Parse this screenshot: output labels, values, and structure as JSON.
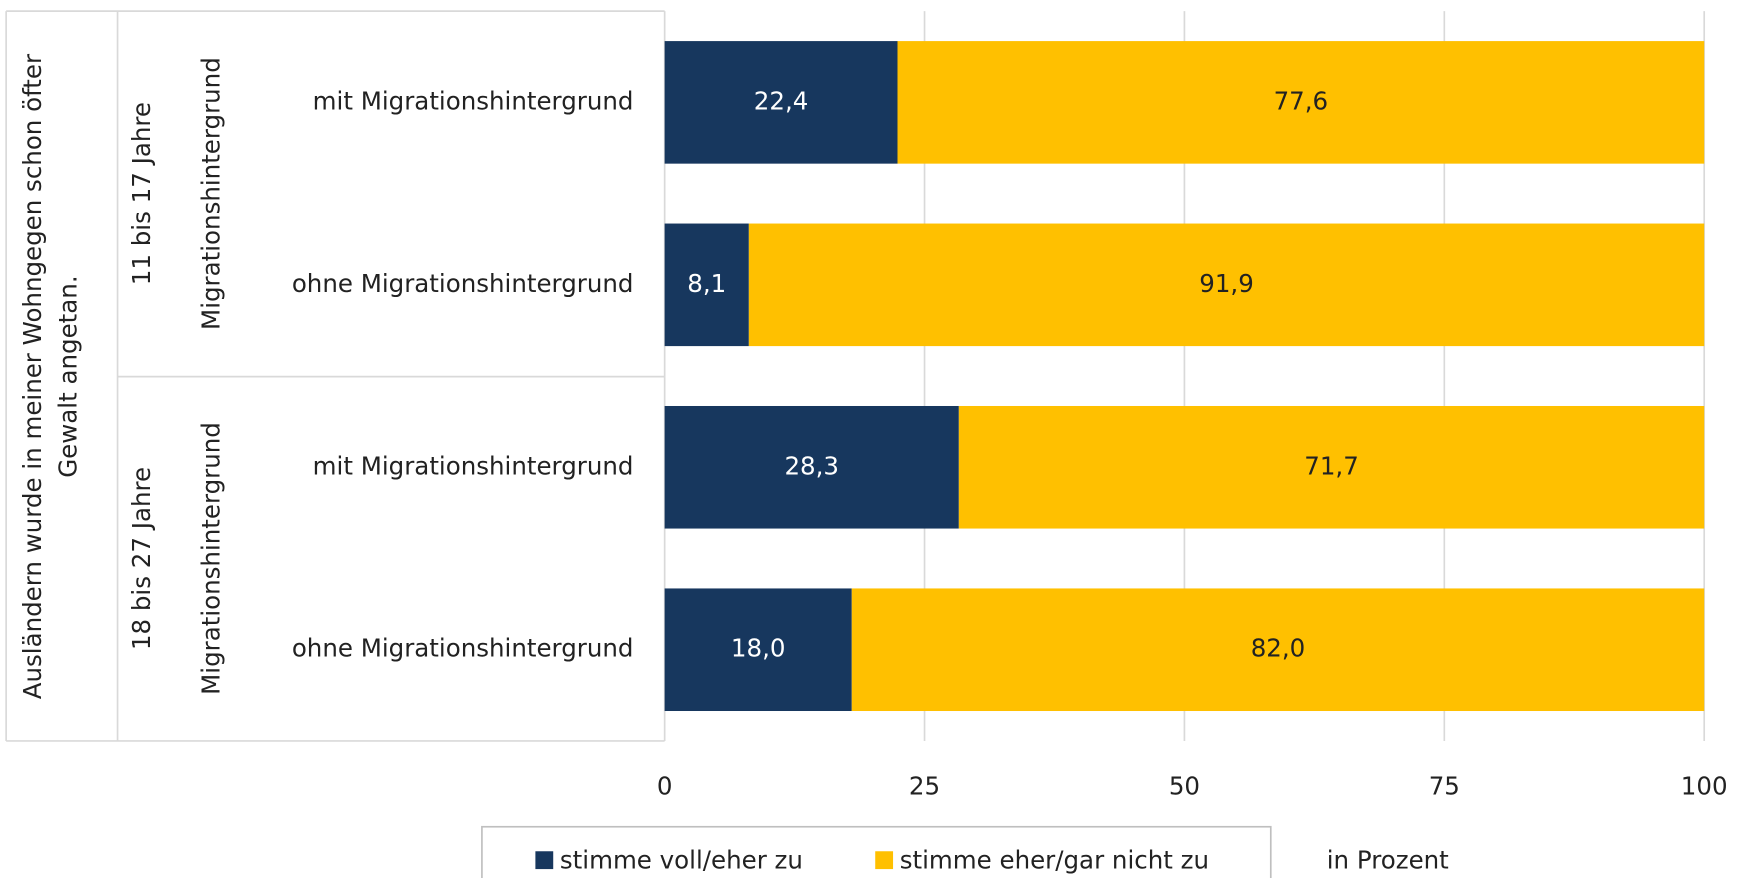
{
  "chart_data": {
    "type": "stacked_hbar",
    "question": [
      "Ausländern wurde in meiner Wohngegen schon öfter",
      "Gewalt angetan."
    ],
    "groups": [
      {
        "name": "11 bis 17 Jahre",
        "subtitle": "Migrationshintergrund"
      },
      {
        "name": "18 bis 27 Jahre",
        "subtitle": "Migrationshintergrund"
      }
    ],
    "categories": [
      "mit Migrationshintergrund",
      "ohne Migrationshintergrund",
      "mit Migrationshintergrund",
      "ohne Migrationshintergrund"
    ],
    "series": [
      {
        "name": "stimme voll/eher zu",
        "color": "#17375e",
        "values": [
          22.4,
          8.1,
          28.3,
          18.0
        ],
        "value_labels": [
          "22,4",
          "8,1",
          "28,3",
          "18,0"
        ]
      },
      {
        "name": "stimme eher/gar nicht zu",
        "color": "#ffc000",
        "values": [
          77.6,
          91.9,
          71.7,
          82.0
        ],
        "value_labels": [
          "77,6",
          "91,9",
          "71,7",
          "82,0"
        ]
      }
    ],
    "xlim": [
      0,
      100
    ],
    "xticks": [
      0,
      25,
      50,
      75,
      100
    ],
    "xlabel": "in Prozent",
    "grid": true
  }
}
